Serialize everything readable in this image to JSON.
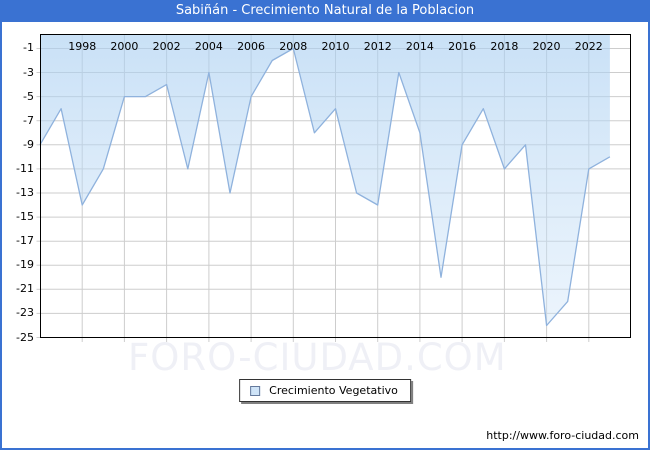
{
  "header": {
    "title": "Sabiñán - Crecimiento Natural de la Poblacion"
  },
  "legend": {
    "label": "Crecimiento Vegetativo"
  },
  "watermark": {
    "text": "FORO-CIUDAD.COM"
  },
  "footer": {
    "url": "http://www.foro-ciudad.com"
  },
  "colors": {
    "titlebar_bg": "#3a72d2",
    "page_border": "#3a72d2",
    "plot_border": "#000000",
    "grid": "#cdcdcd",
    "line": "#8fb2dd",
    "fill_top": "rgba(168,206,241,0.62)",
    "fill_bottom": "rgba(206,228,248,0.40)",
    "label_text": "#000000"
  },
  "chart_data": {
    "type": "area",
    "title": "Sabiñán - Crecimiento Natural de la Poblacion",
    "xlabel": "",
    "ylabel": "",
    "grid": true,
    "legend_position": "bottom-center",
    "x_range": [
      1996,
      2024
    ],
    "y_top": 0.2,
    "y_bottom": -25,
    "x_tick_years": [
      1998,
      2000,
      2002,
      2004,
      2006,
      2008,
      2010,
      2012,
      2014,
      2016,
      2018,
      2020,
      2022
    ],
    "y_ticks": [
      -1,
      -3,
      -5,
      -7,
      -9,
      -11,
      -13,
      -15,
      -17,
      -19,
      -21,
      -23,
      -25
    ],
    "series": [
      {
        "name": "Crecimiento Vegetativo",
        "x": [
          1996,
          1997,
          1998,
          1999,
          2000,
          2001,
          2002,
          2003,
          2004,
          2005,
          2006,
          2007,
          2008,
          2009,
          2010,
          2011,
          2012,
          2013,
          2014,
          2015,
          2016,
          2017,
          2018,
          2019,
          2020,
          2021,
          2022,
          2023
        ],
        "values": [
          -9,
          -6,
          -14,
          -11,
          -5,
          -5,
          -4,
          -11,
          -3,
          -13,
          -5,
          -2,
          -1,
          -8,
          -6,
          -13,
          -14,
          -3,
          -8,
          -20,
          -9,
          -6,
          -11,
          -9,
          -24,
          -22,
          -11,
          -10
        ]
      }
    ]
  }
}
